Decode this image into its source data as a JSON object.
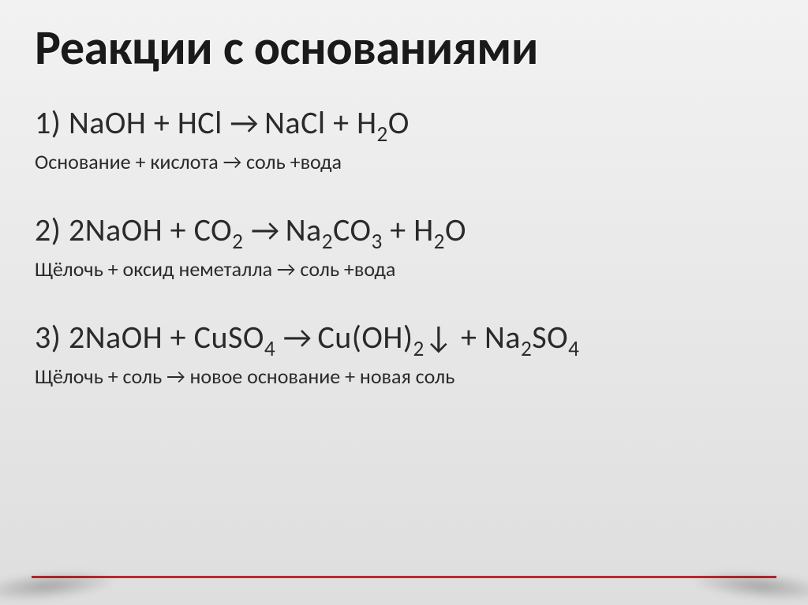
{
  "slide": {
    "title": "Реакции с основаниями",
    "title_fontsize": 62,
    "title_color": "#1a1a1a",
    "equation_fontsize": 40,
    "description_fontsize": 26,
    "text_color": "#2a2a2a",
    "background_gradient": [
      "#f2f2f2",
      "#e8e8e8",
      "#dedede"
    ],
    "accent_line_color": "#b72a2f",
    "font_family": "Calibri",
    "blocks": [
      {
        "num": "1)",
        "lhs_a": "NaOH",
        "op1": "+",
        "lhs_b": "HCl",
        "arrow": "→",
        "rhs_a": "NaCl",
        "op2": "+",
        "rhs_b_pre": "H",
        "rhs_b_sub": "2",
        "rhs_b_post": "O",
        "desc": "Основание + кислота → соль +вода"
      },
      {
        "num": "2)",
        "lhs_a": "2NaOH",
        "op1": "+",
        "lhs_b_pre": "CO",
        "lhs_b_sub": "2",
        "arrow": "→",
        "rhs_a_pre": "Na",
        "rhs_a_sub1": "2",
        "rhs_a_mid": "CO",
        "rhs_a_sub2": "3",
        "op2": "+",
        "rhs_b_pre": "H",
        "rhs_b_sub": "2",
        "rhs_b_post": "O",
        "desc": "Щёлочь + оксид неметалла → соль +вода"
      },
      {
        "num": "3)",
        "lhs_a": "2NaOH",
        "op1": "+",
        "lhs_b_pre": "CuSO",
        "lhs_b_sub": "4",
        "arrow": "→",
        "rhs_a_pre": "Cu(OH)",
        "rhs_a_sub": "2",
        "rhs_a_post": "↓",
        "op2": "+",
        "rhs_b_pre": "Na",
        "rhs_b_sub1": "2",
        "rhs_b_mid": "SO",
        "rhs_b_sub2": "4",
        "desc": "Щёлочь + соль → новое основание + новая соль"
      }
    ]
  }
}
